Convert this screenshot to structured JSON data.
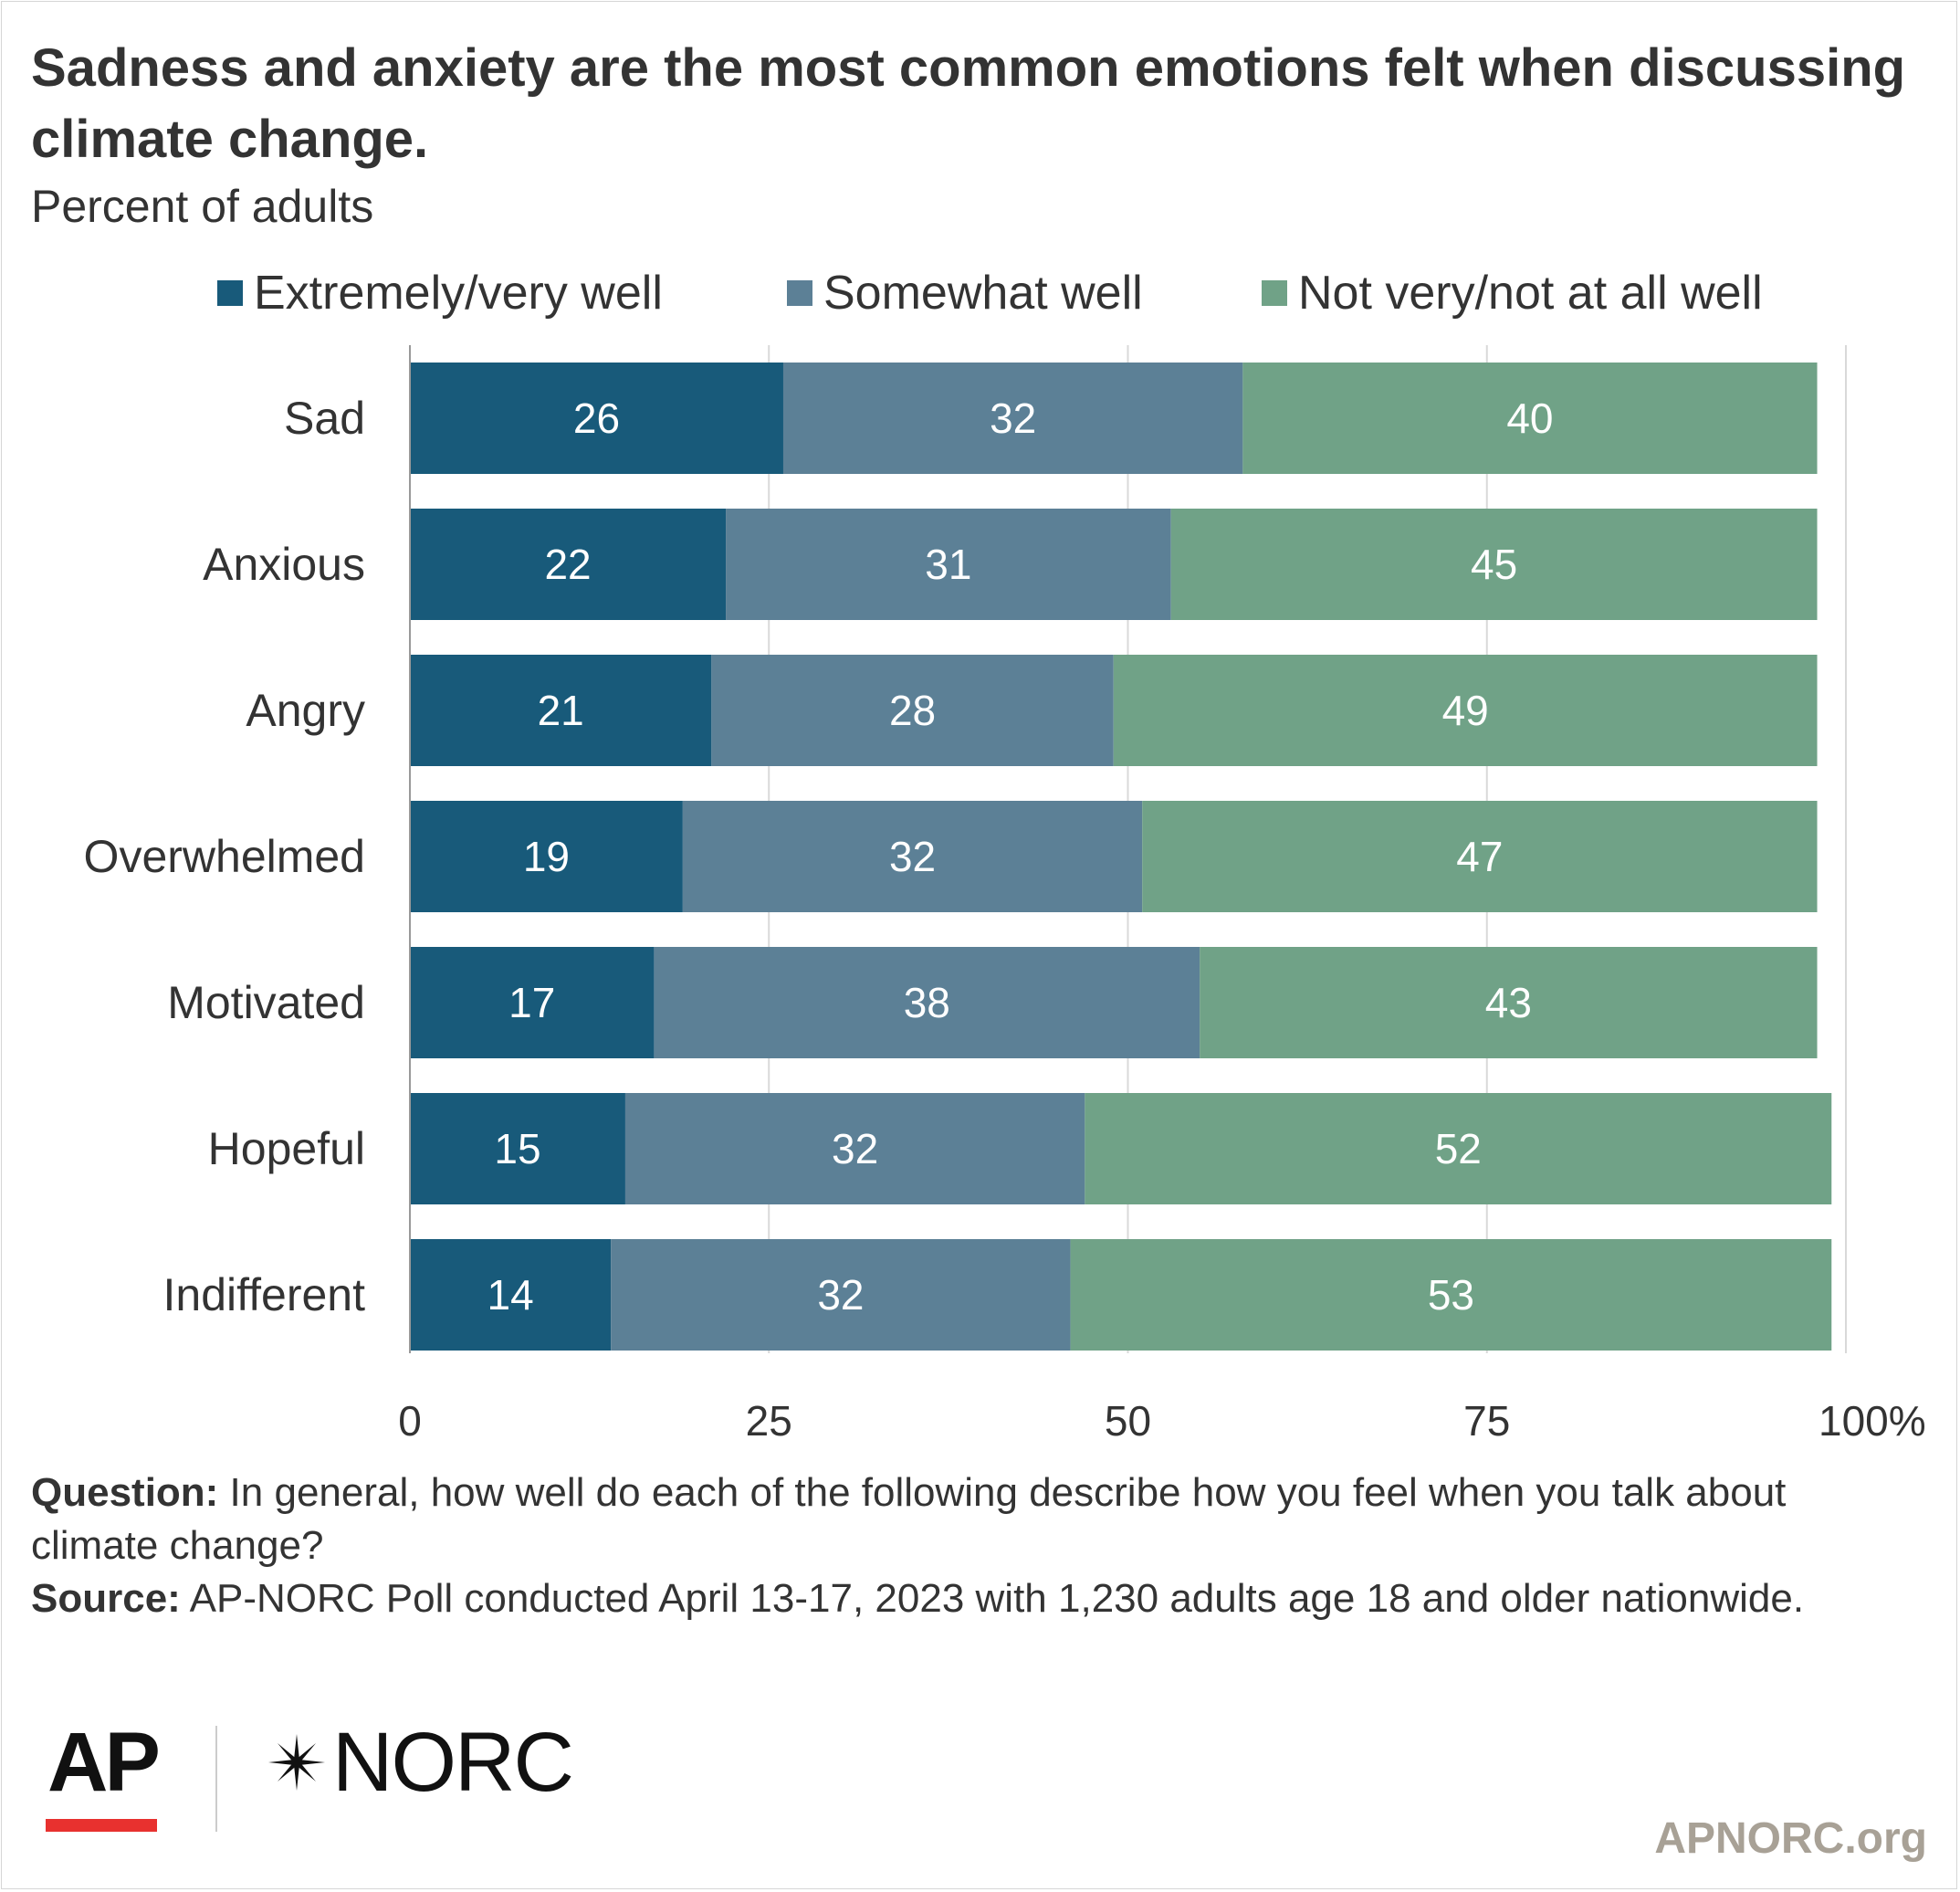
{
  "header": {
    "title": "Sadness and anxiety are the most common emotions felt when discussing climate change.",
    "subtitle": "Percent of adults"
  },
  "colors": {
    "extremely": "#185a7a",
    "somewhat": "#5c8096",
    "not_very": "#70a287",
    "grid": "#d9d9d9",
    "axis_text": "#333333",
    "bar_label": "#ffffff"
  },
  "legend": {
    "items": [
      {
        "label": "Extremely/very well",
        "color": "#185a7a"
      },
      {
        "label": "Somewhat well",
        "color": "#5c8096"
      },
      {
        "label": "Not very/not at all well",
        "color": "#70a287"
      }
    ]
  },
  "chart_data": {
    "type": "bar",
    "orientation": "horizontal",
    "stacked": true,
    "categories": [
      "Sad",
      "Anxious",
      "Angry",
      "Overwhelmed",
      "Motivated",
      "Hopeful",
      "Indifferent"
    ],
    "series": [
      {
        "name": "Extremely/very well",
        "color": "#185a7a",
        "values": [
          26,
          22,
          21,
          19,
          17,
          15,
          14
        ]
      },
      {
        "name": "Somewhat well",
        "color": "#5c8096",
        "values": [
          32,
          31,
          28,
          32,
          38,
          32,
          32
        ]
      },
      {
        "name": "Not very/not at all well",
        "color": "#70a287",
        "values": [
          40,
          45,
          49,
          47,
          43,
          52,
          53
        ]
      }
    ],
    "xlim": [
      0,
      100
    ],
    "xticks": [
      {
        "value": 0,
        "label": "0"
      },
      {
        "value": 25,
        "label": "25"
      },
      {
        "value": 50,
        "label": "50"
      },
      {
        "value": 75,
        "label": "75"
      },
      {
        "value": 100,
        "label": "100%"
      }
    ],
    "grid": true,
    "legend_position": "top",
    "data_labels": true
  },
  "notes": {
    "question_label": "Question:",
    "question_text": " In general, how well do each of the following describe how you feel when you talk about climate change?",
    "source_label": "Source:",
    "source_text": " AP-NORC Poll conducted April 13-17, 2023 with 1,230 adults age 18 and older nationwide."
  },
  "footer": {
    "ap_logo": "AP",
    "norc_logo": "NORC",
    "url": "APNORC.org"
  }
}
